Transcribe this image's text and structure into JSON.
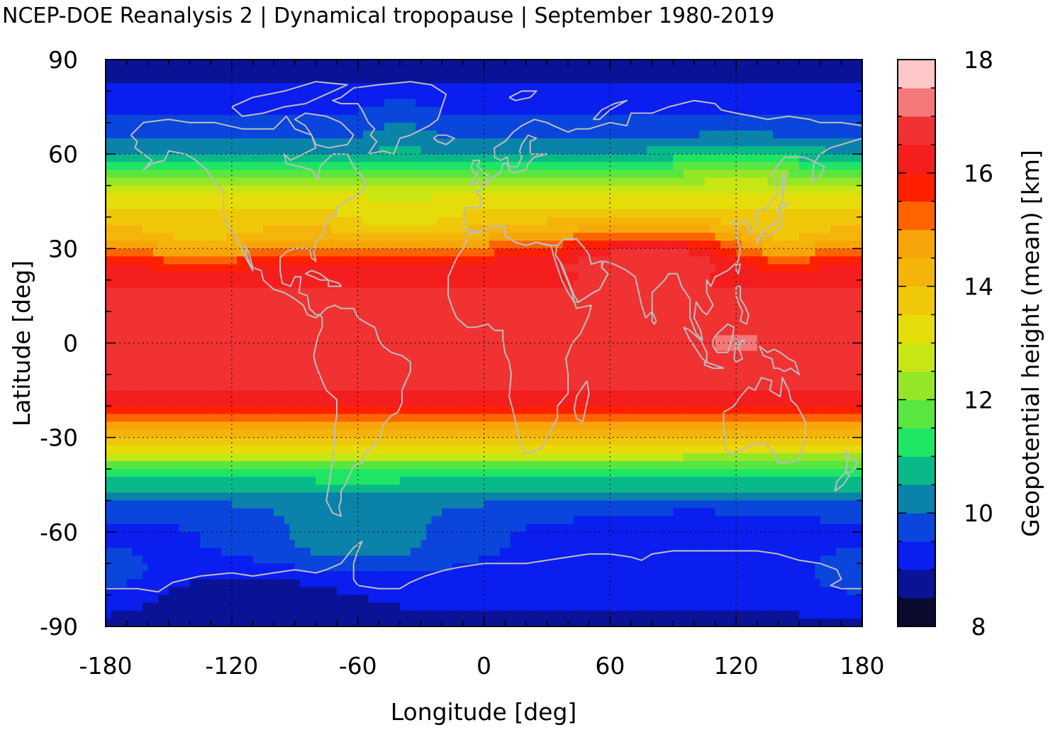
{
  "title": "NCEP-DOE Reanalysis 2 | Dynamical tropopause | September 1980-2019",
  "chart_data": {
    "type": "heatmap",
    "title": "NCEP-DOE Reanalysis 2 | Dynamical tropopause | September 1980-2019",
    "xlabel": "Longitude [deg]",
    "ylabel": "Latitude [deg]",
    "colorbar_label": "Geopotential height (mean) [km]",
    "xlim": [
      -180,
      180
    ],
    "ylim": [
      -90,
      90
    ],
    "x_ticks": [
      "-180",
      "-120",
      "-60",
      "0",
      "60",
      "120",
      "180"
    ],
    "y_ticks": [
      "90",
      "60",
      "30",
      "0",
      "-30",
      "-60",
      "-90"
    ],
    "colorbar_range": [
      8,
      18
    ],
    "colorbar_ticks": [
      "18",
      "16",
      "14",
      "12",
      "10",
      "8"
    ],
    "colorbar_levels": [
      8,
      8.5,
      9,
      9.5,
      10,
      10.5,
      11,
      11.5,
      12,
      12.5,
      13,
      13.5,
      14,
      14.5,
      15,
      15.5,
      16,
      16.5,
      17,
      17.5,
      18
    ],
    "colorbar_colors": [
      "#0a0a2e",
      "#0a1396",
      "#0a1eef",
      "#0a46dc",
      "#0a82aa",
      "#0ab98a",
      "#1ee664",
      "#5ae640",
      "#96e628",
      "#c8e614",
      "#e6dc0a",
      "#f0c80a",
      "#f5b40a",
      "#f7a60a",
      "#ff6400",
      "#ff2000",
      "#f51e1e",
      "#f03232",
      "#f57878",
      "#ffc8c8"
    ],
    "grid": "dotted",
    "coastlines": true,
    "zonal_profile": {
      "latitudes": [
        90,
        85,
        80,
        75,
        70,
        65,
        60,
        55,
        50,
        45,
        40,
        35,
        30,
        25,
        20,
        15,
        10,
        5,
        0,
        -5,
        -10,
        -15,
        -20,
        -25,
        -30,
        -35,
        -40,
        -45,
        -50,
        -55,
        -60,
        -65,
        -70,
        -75,
        -80,
        -85,
        -90
      ],
      "height_km": [
        8.7,
        8.8,
        9.1,
        9.3,
        9.6,
        10.0,
        10.6,
        11.6,
        12.6,
        13.3,
        13.8,
        14.3,
        15.2,
        16.2,
        16.4,
        16.6,
        16.7,
        16.7,
        16.7,
        16.7,
        16.6,
        16.5,
        16.2,
        15.0,
        14.0,
        12.8,
        11.6,
        10.7,
        10.0,
        9.6,
        9.4,
        9.4,
        9.3,
        9.2,
        9.1,
        9.0,
        8.9
      ]
    }
  }
}
